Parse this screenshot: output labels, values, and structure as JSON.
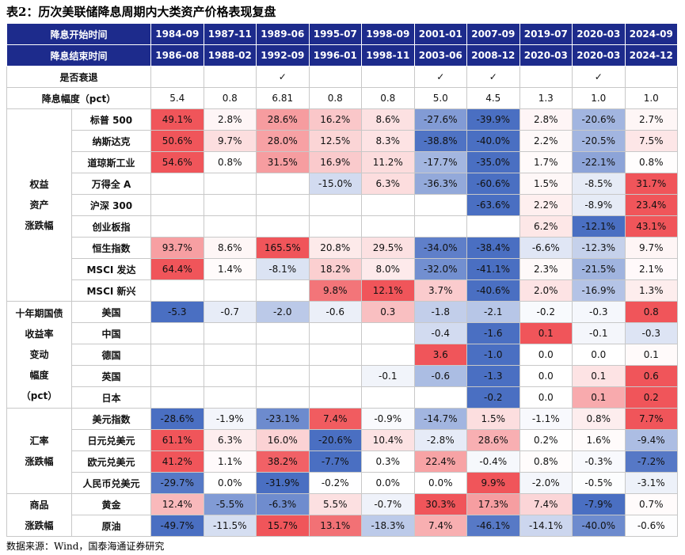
{
  "title": "表2：历次美联储降息周期内大类资产价格表现复盘",
  "table": {
    "header_rows": [
      {
        "label": "降息开始时间",
        "cells": [
          "1984-09",
          "1987-11",
          "1989-06",
          "1995-07",
          "1998-09",
          "2001-01",
          "2007-09",
          "2019-07",
          "2020-03",
          "2024-09"
        ]
      },
      {
        "label": "降息结束时间",
        "cells": [
          "1986-08",
          "1988-02",
          "1992-09",
          "1996-01",
          "1998-11",
          "2003-06",
          "2008-12",
          "2020-03",
          "2020-03",
          "2024-12"
        ]
      }
    ],
    "info_rows": [
      {
        "label": "是否衰退",
        "cells": [
          null,
          null,
          "✓",
          null,
          null,
          "✓",
          "✓",
          null,
          "✓",
          null
        ]
      },
      {
        "label": "降息幅度（pct）",
        "cells": [
          "5.4",
          "0.8",
          "6.81",
          "0.8",
          "0.8",
          "5.0",
          "4.5",
          "1.3",
          "1.0",
          "1.0"
        ]
      }
    ],
    "groups": [
      {
        "label": [
          "权益",
          "资产",
          "涨跌幅"
        ],
        "rows": [
          {
            "label": "标普 500",
            "cells": [
              "49.1%",
              "2.8%",
              "28.6%",
              "16.2%",
              "8.6%",
              "-27.6%",
              "-39.9%",
              "2.8%",
              "-20.6%",
              "2.7%"
            ]
          },
          {
            "label": "纳斯达克",
            "cells": [
              "50.6%",
              "9.7%",
              "28.0%",
              "12.5%",
              "8.3%",
              "-38.8%",
              "-40.0%",
              "2.2%",
              "-20.5%",
              "7.5%"
            ]
          },
          {
            "label": "道琼斯工业",
            "cells": [
              "54.6%",
              "0.8%",
              "31.5%",
              "16.9%",
              "11.2%",
              "-17.7%",
              "-35.0%",
              "1.7%",
              "-22.1%",
              "0.8%"
            ]
          },
          {
            "label": "万得全 A",
            "cells": [
              null,
              null,
              null,
              "-15.0%",
              "6.3%",
              "-36.3%",
              "-60.6%",
              "1.5%",
              "-8.5%",
              "31.7%"
            ]
          },
          {
            "label": "沪深 300",
            "cells": [
              null,
              null,
              null,
              null,
              null,
              null,
              "-63.6%",
              "2.2%",
              "-8.9%",
              "23.4%"
            ]
          },
          {
            "label": "创业板指",
            "cells": [
              null,
              null,
              null,
              null,
              null,
              null,
              null,
              "6.2%",
              "-12.1%",
              "43.1%"
            ]
          },
          {
            "label": "恒生指数",
            "cells": [
              "93.7%",
              "8.6%",
              "165.5%",
              "20.8%",
              "29.5%",
              "-34.0%",
              "-38.4%",
              "-6.6%",
              "-12.3%",
              "9.7%"
            ]
          },
          {
            "label": "MSCI 发达",
            "cells": [
              "64.4%",
              "1.4%",
              "-8.1%",
              "18.2%",
              "8.0%",
              "-32.0%",
              "-41.1%",
              "2.3%",
              "-21.5%",
              "2.1%"
            ]
          },
          {
            "label": "MSCI 新兴",
            "cells": [
              null,
              null,
              null,
              "9.8%",
              "12.1%",
              "3.7%",
              "-40.6%",
              "2.0%",
              "-16.9%",
              "1.3%"
            ]
          }
        ]
      },
      {
        "label": [
          "十年期国债",
          "收益率",
          "变动",
          "幅度",
          "（pct）"
        ],
        "rows": [
          {
            "label": "美国",
            "cells": [
              "-5.3",
              "-0.7",
              "-2.0",
              "-0.6",
              "0.3",
              "-1.8",
              "-2.1",
              "-0.2",
              "-0.3",
              "0.8"
            ]
          },
          {
            "label": "中国",
            "cells": [
              null,
              null,
              null,
              null,
              null,
              "-0.4",
              "-1.6",
              "0.1",
              "-0.1",
              "-0.3"
            ]
          },
          {
            "label": "德国",
            "cells": [
              null,
              null,
              null,
              null,
              null,
              "3.6",
              "-1.0",
              "0.0",
              "0.0",
              "0.1"
            ]
          },
          {
            "label": "英国",
            "cells": [
              null,
              null,
              null,
              null,
              "-0.1",
              "-0.6",
              "-1.3",
              "0.0",
              "0.1",
              "0.6"
            ]
          },
          {
            "label": "日本",
            "cells": [
              null,
              null,
              null,
              null,
              null,
              null,
              "-0.2",
              "0.0",
              "0.1",
              "0.2"
            ]
          }
        ]
      },
      {
        "label": [
          "汇率",
          "涨跌幅"
        ],
        "rows": [
          {
            "label": "美元指数",
            "cells": [
              "-28.6%",
              "-1.9%",
              "-23.1%",
              "7.4%",
              "-0.9%",
              "-14.7%",
              "1.5%",
              "-1.1%",
              "0.8%",
              "7.7%"
            ]
          },
          {
            "label": "日元兑美元",
            "cells": [
              "61.1%",
              "6.3%",
              "16.0%",
              "-20.6%",
              "10.4%",
              "-2.8%",
              "28.6%",
              "0.2%",
              "1.6%",
              "-9.4%"
            ]
          },
          {
            "label": "欧元兑美元",
            "cells": [
              "41.2%",
              "1.1%",
              "38.2%",
              "-7.7%",
              "0.3%",
              "22.4%",
              "-0.4%",
              "0.8%",
              "-0.3%",
              "-7.2%"
            ]
          },
          {
            "label": "人民币兑美元",
            "cells": [
              "-29.7%",
              "0.0%",
              "-31.9%",
              "-0.2%",
              "0.0%",
              "0.0%",
              "9.9%",
              "-2.0%",
              "-0.5%",
              "-3.1%"
            ]
          }
        ]
      },
      {
        "label": [
          "商品",
          "涨跌幅"
        ],
        "rows": [
          {
            "label": "黄金",
            "cells": [
              "12.4%",
              "-5.5%",
              "-6.3%",
              "5.5%",
              "-0.7%",
              "30.3%",
              "17.3%",
              "7.4%",
              "-7.9%",
              "0.7%"
            ]
          },
          {
            "label": "原油",
            "cells": [
              "-49.7%",
              "-11.5%",
              "15.7%",
              "13.1%",
              "-18.3%",
              "7.4%",
              "-46.1%",
              "-14.1%",
              "-40.0%",
              "-0.6%"
            ]
          }
        ]
      }
    ],
    "color_scale": {
      "negative": "#4a6fc2",
      "positive": "#f0555a"
    }
  },
  "source": "数据来源：Wind，国泰海通证券研究"
}
